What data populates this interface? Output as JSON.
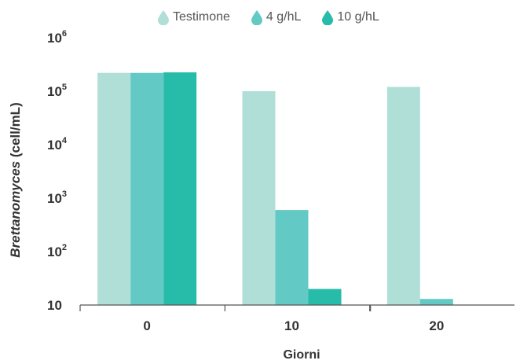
{
  "chart_data": {
    "type": "bar",
    "scale": "log",
    "categories": [
      "0",
      "10",
      "20"
    ],
    "series": [
      {
        "name": "Testimone",
        "color": "#b0dfd8",
        "values": [
          220000,
          100000,
          120000
        ]
      },
      {
        "name": "4 g/hL",
        "color": "#63c9c4",
        "values": [
          220000,
          600,
          13
        ]
      },
      {
        "name": "10 g/hL",
        "color": "#27bca9",
        "values": [
          225000,
          20,
          null
        ]
      }
    ],
    "xlabel": "Giorni",
    "ylabel_italic": "Brettanomyces",
    "ylabel_rest": " (cell/mL)",
    "ylim": [
      10,
      1000000
    ],
    "yticks": [
      {
        "value": 10,
        "base": "10",
        "exp": ""
      },
      {
        "value": 100,
        "base": "10",
        "exp": "2"
      },
      {
        "value": 1000,
        "base": "10",
        "exp": "3"
      },
      {
        "value": 10000,
        "base": "10",
        "exp": "4"
      },
      {
        "value": 100000,
        "base": "10",
        "exp": "5"
      },
      {
        "value": 1000000,
        "base": "10",
        "exp": "6"
      }
    ],
    "legend_position": "top",
    "grid": false
  }
}
